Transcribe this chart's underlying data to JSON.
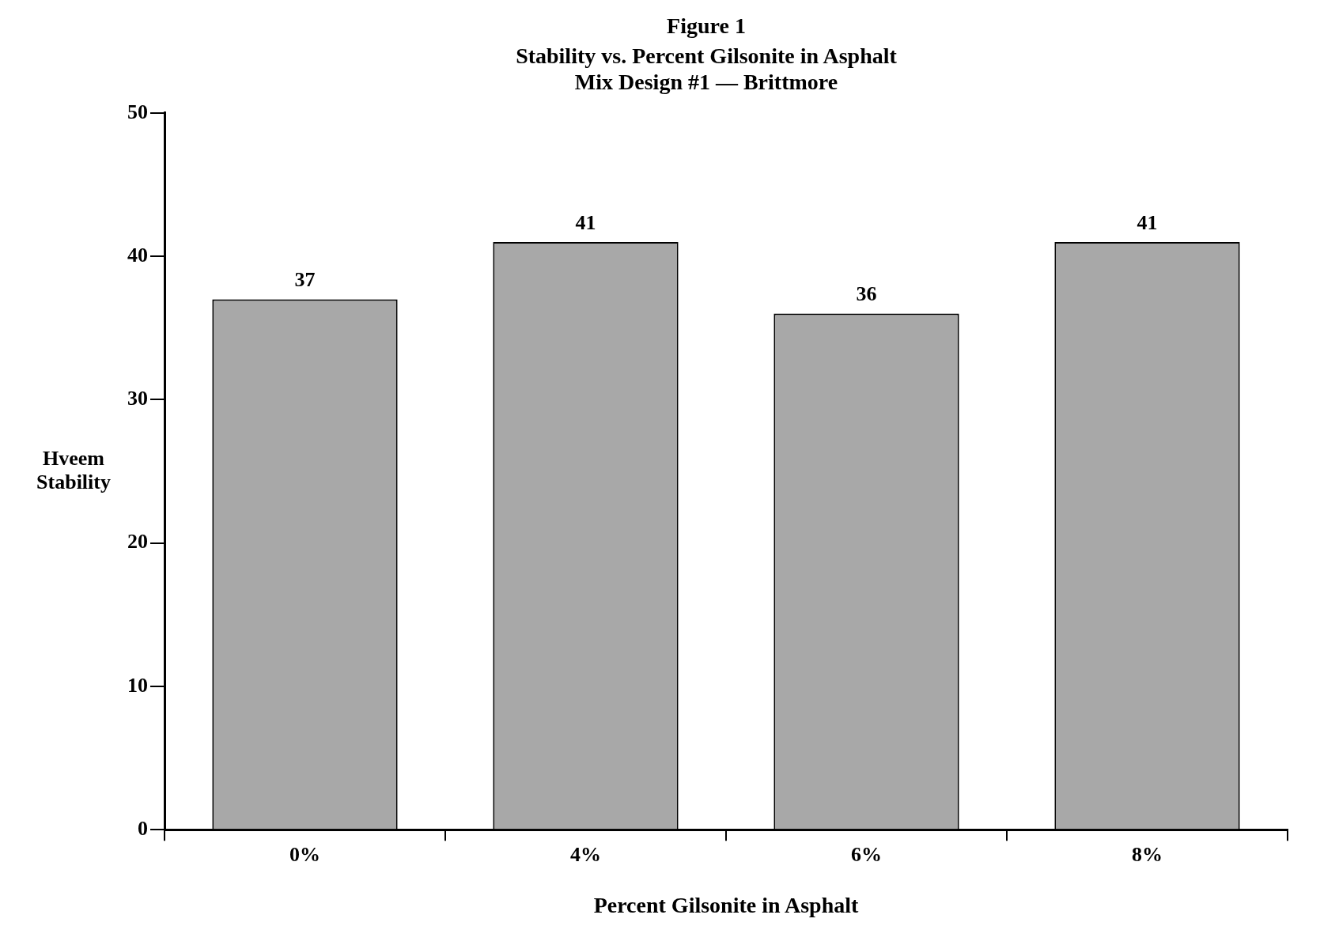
{
  "chart_data": {
    "type": "bar",
    "title": "Figure 1",
    "subtitle": "Stability vs. Percent Gilsonite in Asphalt\nMix Design #1 — Brittmore",
    "categories": [
      "0%",
      "4%",
      "6%",
      "8%"
    ],
    "values": [
      37,
      41,
      36,
      41
    ],
    "color": "#a8a8a8",
    "xlabel": "Percent Gilsonite in Asphalt",
    "ylabel": "Hveem Stability",
    "ylim": [
      0,
      50
    ],
    "yticks": [
      0,
      10,
      20,
      30,
      40,
      50
    ],
    "grid": false,
    "legend": false,
    "data_labels": true
  }
}
